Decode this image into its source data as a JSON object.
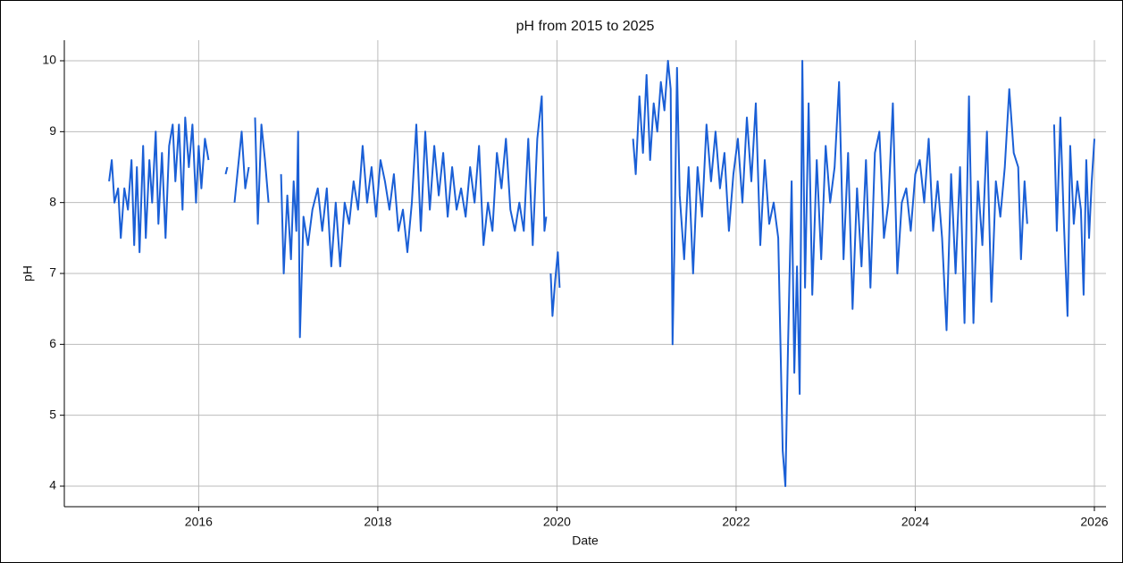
{
  "chart_data": {
    "type": "line",
    "title": "pH from 2015 to 2025",
    "x_label": "Date",
    "y_label": "pH",
    "xlim": [
      2014.5,
      2026.13
    ],
    "xticks": [
      2016,
      2018,
      2020,
      2022,
      2024,
      2026
    ],
    "ylim": [
      3.71,
      10.29
    ],
    "yticks": [
      4,
      5,
      6,
      7,
      8,
      9,
      10
    ],
    "grid": true,
    "series": [
      {
        "name": "pH",
        "color": "#1a5fd6",
        "x": [
          2015.0,
          2015.03,
          2015.06,
          2015.1,
          2015.13,
          2015.17,
          2015.21,
          2015.25,
          2015.28,
          2015.31,
          2015.34,
          2015.38,
          2015.41,
          2015.45,
          2015.48,
          2015.52,
          2015.55,
          2015.59,
          2015.63,
          2015.67,
          2015.71,
          2015.74,
          2015.78,
          2015.82,
          2015.85,
          2015.89,
          2015.93,
          2015.97,
          2016.0,
          2016.03,
          2016.07,
          2016.11,
          2016.2,
          2016.3,
          2016.32,
          2016.36,
          2016.4,
          2016.44,
          2016.48,
          2016.52,
          2016.56,
          2016.6,
          2016.63,
          2016.66,
          2016.7,
          2016.74,
          2016.78,
          2016.85,
          2016.92,
          2016.95,
          2016.99,
          2017.03,
          2017.06,
          2017.09,
          2017.11,
          2017.13,
          2017.17,
          2017.22,
          2017.27,
          2017.33,
          2017.38,
          2017.43,
          2017.48,
          2017.53,
          2017.58,
          2017.63,
          2017.68,
          2017.73,
          2017.78,
          2017.83,
          2017.88,
          2017.93,
          2017.98,
          2018.03,
          2018.08,
          2018.13,
          2018.18,
          2018.23,
          2018.28,
          2018.33,
          2018.38,
          2018.43,
          2018.48,
          2018.53,
          2018.58,
          2018.63,
          2018.68,
          2018.73,
          2018.78,
          2018.83,
          2018.88,
          2018.93,
          2018.98,
          2019.03,
          2019.08,
          2019.13,
          2019.18,
          2019.23,
          2019.28,
          2019.33,
          2019.38,
          2019.43,
          2019.48,
          2019.53,
          2019.58,
          2019.63,
          2019.68,
          2019.73,
          2019.78,
          2019.83,
          2019.86,
          2019.88,
          2019.91,
          2019.93,
          2019.95,
          2019.98,
          2020.01,
          2020.03,
          2020.4,
          2020.85,
          2020.88,
          2020.92,
          2020.96,
          2021.0,
          2021.04,
          2021.08,
          2021.12,
          2021.16,
          2021.2,
          2021.24,
          2021.27,
          2021.29,
          2021.31,
          2021.34,
          2021.37,
          2021.42,
          2021.47,
          2021.52,
          2021.57,
          2021.62,
          2021.67,
          2021.72,
          2021.77,
          2021.82,
          2021.87,
          2021.92,
          2021.97,
          2022.02,
          2022.07,
          2022.12,
          2022.17,
          2022.22,
          2022.27,
          2022.32,
          2022.37,
          2022.42,
          2022.47,
          2022.52,
          2022.55,
          2022.58,
          2022.62,
          2022.65,
          2022.68,
          2022.71,
          2022.74,
          2022.77,
          2022.81,
          2022.85,
          2022.9,
          2022.95,
          2023.0,
          2023.05,
          2023.1,
          2023.15,
          2023.2,
          2023.25,
          2023.3,
          2023.35,
          2023.4,
          2023.45,
          2023.5,
          2023.55,
          2023.6,
          2023.65,
          2023.7,
          2023.75,
          2023.8,
          2023.85,
          2023.9,
          2023.95,
          2024.0,
          2024.05,
          2024.1,
          2024.15,
          2024.2,
          2024.25,
          2024.3,
          2024.35,
          2024.4,
          2024.45,
          2024.5,
          2024.55,
          2024.6,
          2024.65,
          2024.7,
          2024.75,
          2024.8,
          2024.85,
          2024.9,
          2024.95,
          2025.0,
          2025.05,
          2025.1,
          2025.15,
          2025.18,
          2025.22,
          2025.25,
          2025.4,
          2025.55,
          2025.58,
          2025.62,
          2025.66,
          2025.7,
          2025.73,
          2025.77,
          2025.81,
          2025.85,
          2025.88,
          2025.91,
          2025.94,
          2025.97,
          2026.0
        ],
        "values": [
          8.3,
          8.6,
          8.0,
          8.2,
          7.5,
          8.2,
          7.9,
          8.6,
          7.4,
          8.5,
          7.3,
          8.8,
          7.5,
          8.6,
          8.0,
          9.0,
          7.7,
          8.7,
          7.5,
          8.8,
          9.1,
          8.3,
          9.1,
          7.9,
          9.2,
          8.5,
          9.1,
          8.0,
          8.8,
          8.2,
          8.9,
          8.6,
          null,
          8.4,
          8.5,
          null,
          8.0,
          8.5,
          9.0,
          8.2,
          8.5,
          null,
          9.2,
          7.7,
          9.1,
          8.6,
          8.0,
          null,
          8.4,
          7.0,
          8.1,
          7.2,
          8.3,
          7.6,
          9.0,
          6.1,
          7.8,
          7.4,
          7.9,
          8.2,
          7.6,
          8.2,
          7.1,
          8.0,
          7.1,
          8.0,
          7.7,
          8.3,
          7.9,
          8.8,
          8.0,
          8.5,
          7.8,
          8.6,
          8.3,
          7.9,
          8.4,
          7.6,
          7.9,
          7.3,
          8.0,
          9.1,
          7.6,
          9.0,
          7.9,
          8.8,
          8.1,
          8.7,
          7.8,
          8.5,
          7.9,
          8.2,
          7.8,
          8.5,
          8.0,
          8.8,
          7.4,
          8.0,
          7.6,
          8.7,
          8.2,
          8.9,
          7.9,
          7.6,
          8.0,
          7.6,
          8.9,
          7.4,
          8.9,
          9.5,
          7.6,
          7.8,
          null,
          7.0,
          6.4,
          6.9,
          7.3,
          6.8,
          null,
          8.9,
          8.4,
          9.5,
          8.7,
          9.8,
          8.6,
          9.4,
          9.0,
          9.7,
          9.3,
          10.0,
          9.6,
          6.0,
          7.3,
          9.9,
          8.1,
          7.2,
          8.5,
          7.0,
          8.5,
          7.8,
          9.1,
          8.3,
          9.0,
          8.2,
          8.7,
          7.6,
          8.4,
          8.9,
          8.0,
          9.2,
          8.3,
          9.4,
          7.4,
          8.6,
          7.7,
          8.0,
          7.5,
          4.5,
          4.0,
          6.0,
          8.3,
          5.6,
          7.1,
          5.3,
          10.0,
          6.8,
          9.4,
          6.7,
          8.6,
          7.2,
          8.8,
          8.0,
          8.5,
          9.7,
          7.2,
          8.7,
          6.5,
          8.2,
          7.1,
          8.6,
          6.8,
          8.7,
          9.0,
          7.5,
          8.0,
          9.4,
          7.0,
          8.0,
          8.2,
          7.6,
          8.4,
          8.6,
          8.0,
          8.9,
          7.6,
          8.3,
          7.5,
          6.2,
          8.4,
          7.0,
          8.5,
          6.3,
          9.5,
          6.3,
          8.3,
          7.4,
          9.0,
          6.6,
          8.3,
          7.8,
          8.5,
          9.6,
          8.7,
          8.5,
          7.2,
          8.3,
          7.7,
          null,
          9.1,
          7.6,
          9.2,
          7.7,
          6.4,
          8.8,
          7.7,
          8.3,
          7.9,
          6.7,
          8.6,
          7.5,
          8.3,
          8.9
        ]
      }
    ]
  }
}
